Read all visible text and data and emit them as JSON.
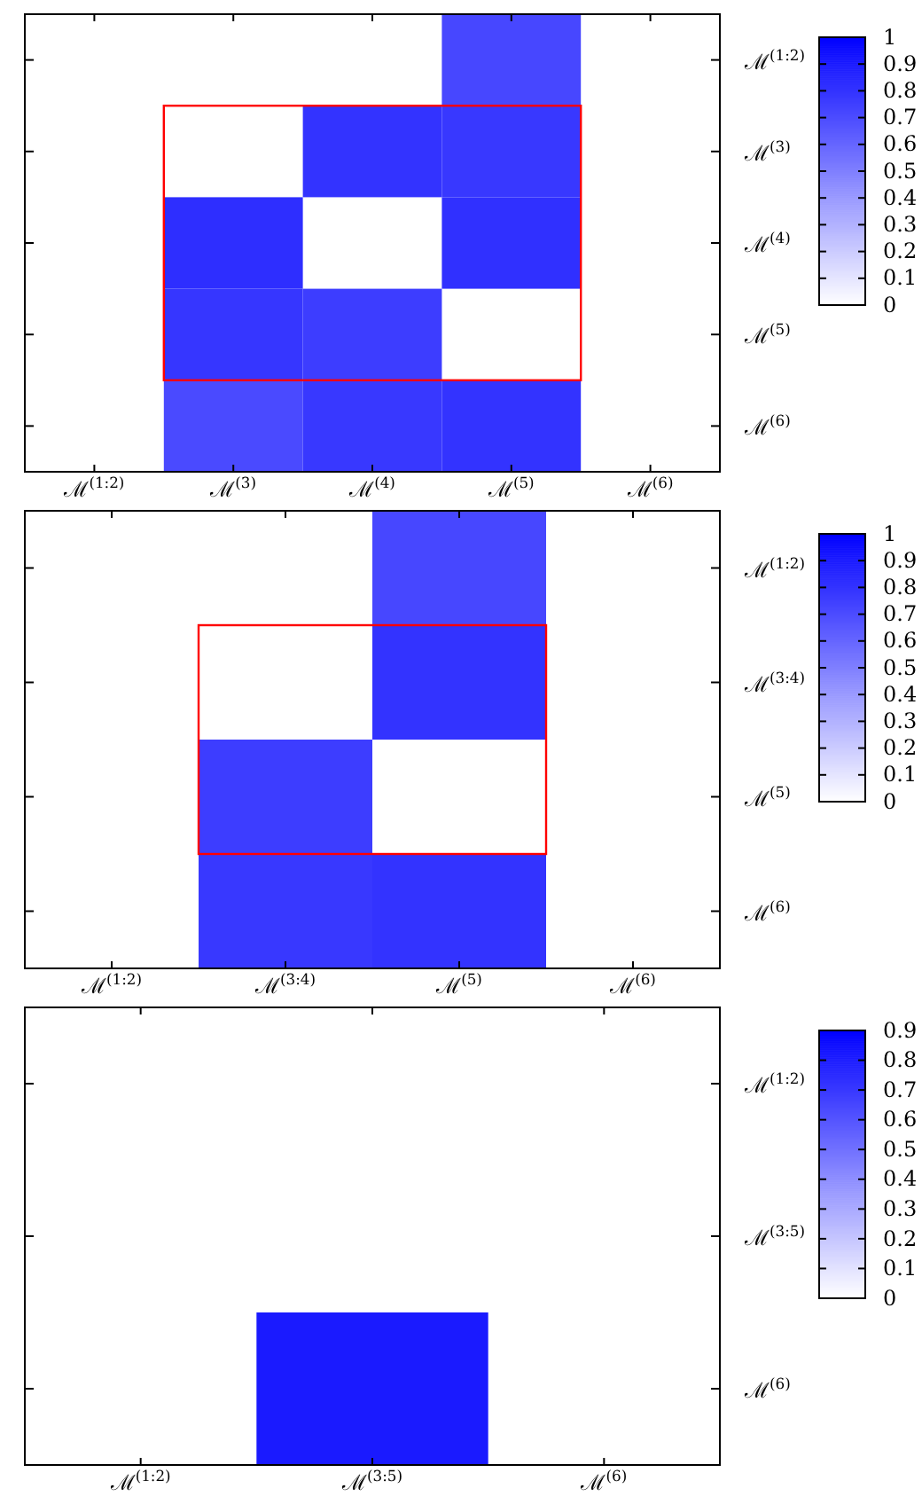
{
  "chart_data": [
    {
      "type": "heatmap",
      "categories": [
        "ℳ$^{(1:2)}$",
        "ℳ$^{(3)}$",
        "ℳ$^{(4)}$",
        "ℳ$^{(5)}$",
        "ℳ$^{(6)}$"
      ],
      "y_categories": [
        "ℳ$^{(1:2)}$",
        "ℳ$^{(3)}$",
        "ℳ$^{(4)}$",
        "ℳ$^{(5)}$",
        "ℳ$^{(6)}$"
      ],
      "cells": [
        [
          null,
          null,
          null,
          0.72,
          null
        ],
        [
          null,
          null,
          0.8,
          0.78,
          null
        ],
        [
          null,
          0.82,
          null,
          0.81,
          null
        ],
        [
          null,
          0.79,
          0.76,
          null,
          null
        ],
        [
          null,
          0.71,
          0.78,
          0.8,
          null
        ]
      ],
      "clim": [
        0,
        1
      ],
      "cticks": [
        0,
        0.1,
        0.2,
        0.3,
        0.4,
        0.5,
        0.6,
        0.7,
        0.8,
        0.9,
        1
      ]
    },
    {
      "type": "heatmap",
      "categories": [
        "ℳ$^{(1:2)}$",
        "ℳ$^{(3:4)}$",
        "ℳ$^{(5)}$",
        "ℳ$^{(6)}$"
      ],
      "y_categories": [
        "ℳ$^{(1:2)}$",
        "ℳ$^{(3:4)}$",
        "ℳ$^{(5)}$",
        "ℳ$^{(6)}$"
      ],
      "cells": [
        [
          null,
          null,
          0.72,
          null
        ],
        [
          null,
          null,
          0.8,
          null
        ],
        [
          null,
          0.76,
          null,
          null
        ],
        [
          null,
          0.78,
          0.8,
          null
        ]
      ],
      "clim": [
        0,
        1
      ],
      "cticks": [
        0,
        0.1,
        0.2,
        0.3,
        0.4,
        0.5,
        0.6,
        0.7,
        0.8,
        0.9,
        1
      ]
    },
    {
      "type": "heatmap",
      "categories": [
        "ℳ$^{(1:2)}$",
        "ℳ$^{(3:5)}$",
        "ℳ$^{(6)}$"
      ],
      "y_categories": [
        "ℳ$^{(1:2)}$",
        "ℳ$^{(3:5)}$",
        "ℳ$^{(6)}$"
      ],
      "cells": [
        [
          null,
          null,
          null
        ],
        [
          null,
          null,
          null
        ],
        [
          null,
          0.81,
          null
        ]
      ],
      "clim": [
        0,
        0.9
      ],
      "cticks": [
        0,
        0.1,
        0.2,
        0.3,
        0.4,
        0.5,
        0.6,
        0.7,
        0.8,
        0.9
      ]
    }
  ]
}
